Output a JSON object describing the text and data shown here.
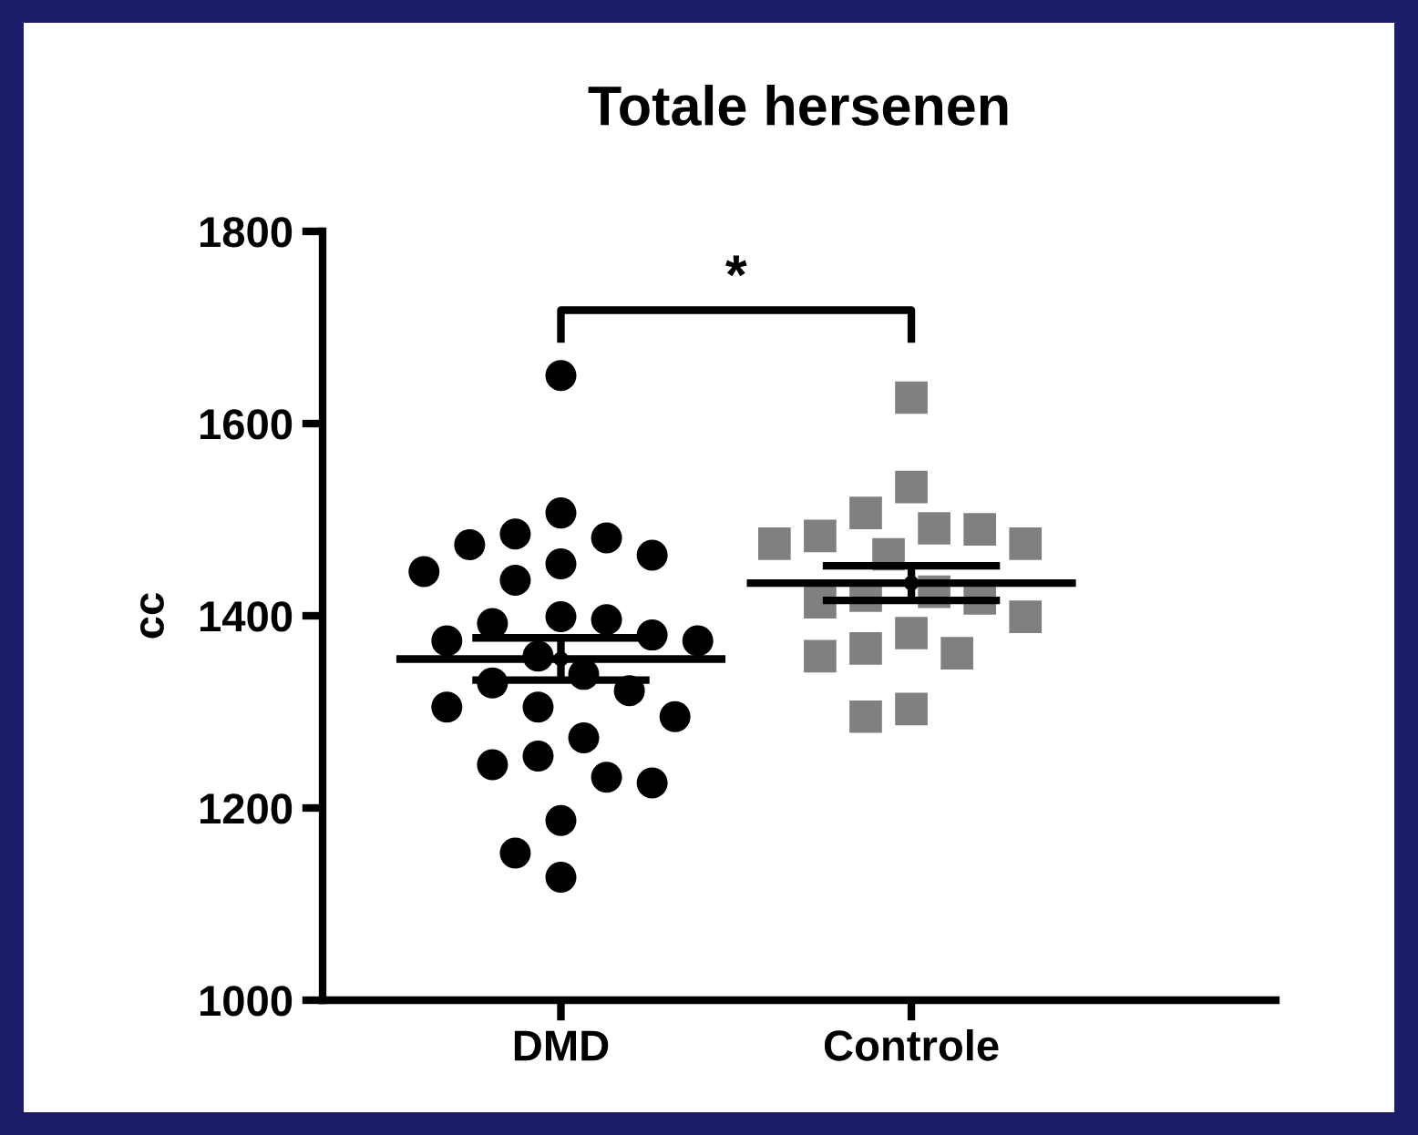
{
  "chart_data": {
    "type": "scatter",
    "title": "Totale hersenen",
    "ylabel": "cc",
    "categories": [
      "DMD",
      "Controle"
    ],
    "ylim": [
      1000,
      1800
    ],
    "yticks": [
      1000,
      1200,
      1400,
      1600,
      1800
    ],
    "grid": false,
    "legend": false,
    "series": [
      {
        "marker": "circle",
        "color": "#000000",
        "x": [
          "DMD",
          "DMD",
          "DMD",
          "DMD",
          "DMD",
          "DMD",
          "DMD",
          "DMD",
          "DMD",
          "DMD",
          "DMD",
          "DMD",
          "DMD",
          "DMD",
          "DMD",
          "DMD",
          "DMD",
          "DMD",
          "DMD",
          "DMD",
          "DMD",
          "DMD",
          "DMD",
          "DMD",
          "DMD",
          "DMD",
          "DMD",
          "DMD",
          "DMD",
          "DMD"
        ],
        "values": [
          1650,
          1507,
          1485,
          1481,
          1474,
          1463,
          1454,
          1446,
          1437,
          1399,
          1396,
          1392,
          1380,
          1374,
          1374,
          1358,
          1339,
          1330,
          1322,
          1305,
          1305,
          1295,
          1273,
          1254,
          1245,
          1232,
          1226,
          1187,
          1153,
          1128
        ]
      },
      {
        "marker": "square",
        "color": "#808080",
        "x": [
          "Controle",
          "Controle",
          "Controle",
          "Controle",
          "Controle",
          "Controle",
          "Controle",
          "Controle",
          "Controle",
          "Controle",
          "Controle",
          "Controle",
          "Controle",
          "Controle",
          "Controle",
          "Controle",
          "Controle",
          "Controle",
          "Controle",
          "Controle"
        ],
        "values": [
          1627,
          1534,
          1507,
          1491,
          1490,
          1483,
          1475,
          1475,
          1464,
          1425,
          1421,
          1418,
          1414,
          1399,
          1382,
          1366,
          1361,
          1358,
          1303,
          1295
        ]
      },
      {
        "color": "#000000",
        "x": [
          "DMD",
          "Controle"
        ],
        "values": [
          1355,
          1434
        ],
        "errors": [
          22,
          18
        ]
      }
    ],
    "annotations": [
      "*"
    ]
  }
}
